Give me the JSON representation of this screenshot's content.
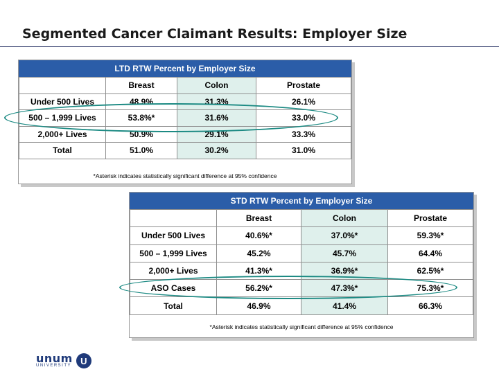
{
  "slide": {
    "title": "Segmented Cancer Claimant Results: Employer Size"
  },
  "ltd": {
    "header": "LTD RTW Percent by Employer Size",
    "columns": [
      "",
      "Breast",
      "Colon",
      "Prostate"
    ],
    "rows": [
      {
        "label": "Under 500 Lives",
        "breast": "48.9%",
        "colon": "31.3%",
        "prostate": "26.1%"
      },
      {
        "label": "500 – 1,999 Lives",
        "breast": "53.8%*",
        "colon": "31.6%",
        "prostate": "33.0%"
      },
      {
        "label": "2,000+ Lives",
        "breast": "50.9%",
        "colon": "29.1%",
        "prostate": "33.3%"
      },
      {
        "label": "Total",
        "breast": "51.0%",
        "colon": "30.2%",
        "prostate": "31.0%"
      }
    ],
    "footnote": "*Asterisk indicates statistically significant difference at 95% confidence"
  },
  "std": {
    "header": "STD RTW Percent by Employer Size",
    "columns": [
      "",
      "Breast",
      "Colon",
      "Prostate"
    ],
    "rows": [
      {
        "label": "Under 500 Lives",
        "breast": "40.6%*",
        "colon": "37.0%*",
        "prostate": "59.3%*"
      },
      {
        "label": "500 – 1,999 Lives",
        "breast": "45.2%",
        "colon": "45.7%",
        "prostate": "64.4%"
      },
      {
        "label": "2,000+ Lives",
        "breast": "41.3%*",
        "colon": "36.9%*",
        "prostate": "62.5%*"
      },
      {
        "label": "ASO Cases",
        "breast": "56.2%*",
        "colon": "47.3%*",
        "prostate": "75.3%*"
      },
      {
        "label": "Total",
        "breast": "46.9%",
        "colon": "41.4%",
        "prostate": "66.3%"
      }
    ],
    "footnote": "*Asterisk indicates statistically significant difference at 95% confidence"
  },
  "highlight_color": "#1c8a83",
  "logo": {
    "word": "unum",
    "sub": "UNIVERSITY",
    "badge": "U"
  }
}
